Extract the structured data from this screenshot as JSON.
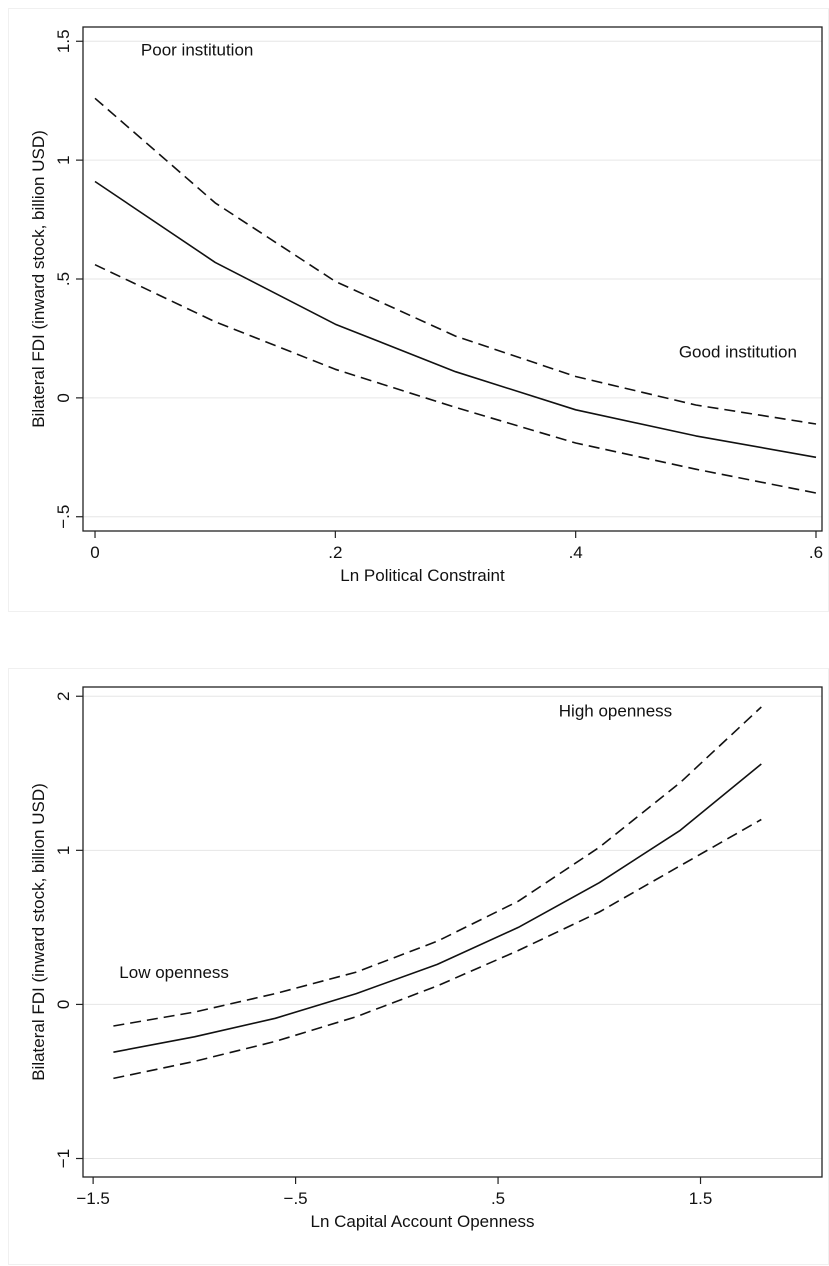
{
  "colors": {
    "plot_border": "#222222",
    "grid": "#e6e6e6",
    "line": "#111111",
    "tick_text": "#111111"
  },
  "chart_data": [
    {
      "type": "line",
      "xlabel": "Ln Political Constraint",
      "ylabel": "Bilateral FDI (inward stock, billion USD)",
      "xlim": [
        -0.01,
        0.605
      ],
      "ylim": [
        -0.56,
        1.56
      ],
      "x_ticks": [
        0,
        0.2,
        0.4,
        0.6
      ],
      "x_tick_labels": [
        "0",
        ".2",
        ".4",
        ".6"
      ],
      "y_ticks": [
        -0.5,
        0,
        0.5,
        1,
        1.5
      ],
      "y_tick_labels": [
        "−.5",
        "0",
        ".5",
        "1",
        "1.5"
      ],
      "grid": "horizontal",
      "annotations": [
        {
          "text": "Poor institution",
          "x": 0.085,
          "y": 1.44
        },
        {
          "text": "Good institution",
          "x": 0.535,
          "y": 0.17
        }
      ],
      "series": [
        {
          "style": "solid",
          "x": [
            0,
            0.1,
            0.2,
            0.3,
            0.4,
            0.5,
            0.6
          ],
          "y": [
            0.91,
            0.57,
            0.31,
            0.11,
            -0.05,
            -0.16,
            -0.25
          ]
        },
        {
          "style": "dashed",
          "x": [
            0,
            0.1,
            0.2,
            0.3,
            0.4,
            0.5,
            0.6
          ],
          "y": [
            1.26,
            0.82,
            0.49,
            0.26,
            0.09,
            -0.03,
            -0.11
          ]
        },
        {
          "style": "dashed",
          "x": [
            0,
            0.1,
            0.2,
            0.3,
            0.4,
            0.5,
            0.6
          ],
          "y": [
            0.56,
            0.32,
            0.12,
            -0.04,
            -0.19,
            -0.3,
            -0.4
          ]
        }
      ]
    },
    {
      "type": "line",
      "xlabel": "Ln Capital Account Openness",
      "ylabel": "Bilateral FDI (inward stock, billion USD)",
      "xlim": [
        -1.55,
        2.1
      ],
      "ylim": [
        -1.12,
        2.06
      ],
      "x_ticks": [
        -1.5,
        -0.5,
        0.5,
        1.5
      ],
      "x_tick_labels": [
        "−1.5",
        "−.5",
        ".5",
        "1.5"
      ],
      "y_ticks": [
        -1,
        0,
        1,
        2
      ],
      "y_tick_labels": [
        "−1",
        "0",
        "1",
        "2"
      ],
      "grid": "horizontal",
      "annotations": [
        {
          "text": "Low openness",
          "x": -1.1,
          "y": 0.17
        },
        {
          "text": "High openness",
          "x": 1.08,
          "y": 1.87
        }
      ],
      "series": [
        {
          "style": "solid",
          "x": [
            -1.4,
            -1.0,
            -0.6,
            -0.2,
            0.2,
            0.6,
            1.0,
            1.4,
            1.8
          ],
          "y": [
            -0.31,
            -0.21,
            -0.09,
            0.07,
            0.26,
            0.5,
            0.79,
            1.13,
            1.56
          ]
        },
        {
          "style": "dashed",
          "x": [
            -1.4,
            -1.0,
            -0.6,
            -0.2,
            0.2,
            0.6,
            1.0,
            1.4,
            1.8
          ],
          "y": [
            -0.14,
            -0.05,
            0.07,
            0.21,
            0.41,
            0.67,
            1.02,
            1.44,
            1.93
          ]
        },
        {
          "style": "dashed",
          "x": [
            -1.4,
            -1.0,
            -0.6,
            -0.2,
            0.2,
            0.6,
            1.0,
            1.4,
            1.8
          ],
          "y": [
            -0.48,
            -0.37,
            -0.24,
            -0.08,
            0.12,
            0.35,
            0.6,
            0.9,
            1.2
          ]
        }
      ]
    }
  ]
}
